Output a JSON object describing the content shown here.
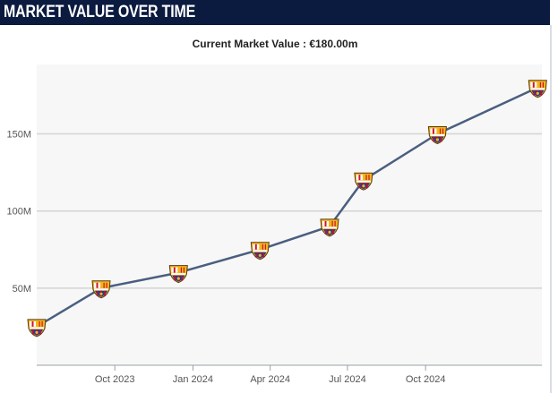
{
  "header": {
    "title": "MARKET VALUE OVER TIME"
  },
  "subtitle": "Current Market Value : €180.00m",
  "colors": {
    "header_bg": "#0b1a3f",
    "line": "#4a5f80",
    "grid": "#d4d4d4",
    "crest_blue": "#1d3f8f",
    "crest_red": "#b8123b",
    "crest_gold": "#f2b51c"
  },
  "icons": {
    "marker": "fc-barcelona-crest-icon"
  },
  "chart_data": {
    "type": "line",
    "title": "",
    "xlabel": "",
    "ylabel": "",
    "ylim": [
      0,
      195
    ],
    "yticks": [
      50,
      100,
      150
    ],
    "ytick_labels": [
      "50M",
      "100M",
      "150M"
    ],
    "x_range": [
      "2023-07-01",
      "2025-02-15"
    ],
    "xticks": [
      "2023-10-01",
      "2024-01-01",
      "2024-04-01",
      "2024-07-01",
      "2024-10-01"
    ],
    "xtick_labels": [
      "Oct 2023",
      "Jan 2024",
      "Apr 2024",
      "Jul 2024",
      "Oct 2024"
    ],
    "grid": true,
    "series": [
      {
        "name": "",
        "x": [
          "2023-07-01",
          "2023-09-15",
          "2023-12-15",
          "2024-03-20",
          "2024-06-10",
          "2024-07-20",
          "2024-10-15",
          "2025-02-10"
        ],
        "y": [
          25,
          50,
          60,
          75,
          90,
          120,
          150,
          180
        ]
      }
    ]
  }
}
